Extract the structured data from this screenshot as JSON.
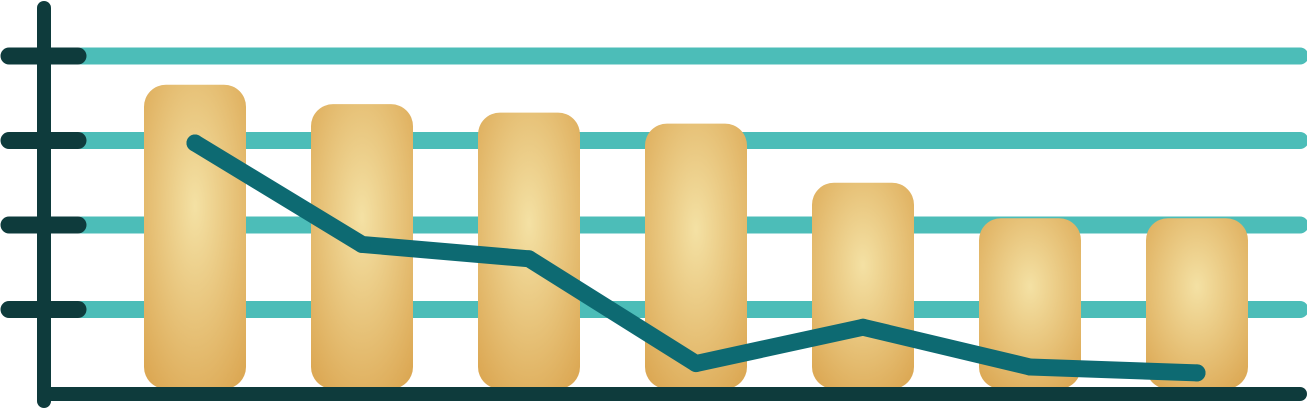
{
  "chart_data": {
    "type": "bar",
    "categories": [
      "",
      "",
      "",
      "",
      "",
      "",
      ""
    ],
    "ylim": [
      0,
      4
    ],
    "yticks": [
      1,
      2,
      3,
      4
    ],
    "grid": true,
    "series": [
      {
        "type": "bar",
        "values": [
          3.66,
          3.43,
          3.33,
          3.2,
          2.5,
          2.08,
          2.08
        ]
      },
      {
        "type": "line",
        "values": [
          2.97,
          1.77,
          1.6,
          0.36,
          0.79,
          0.32,
          0.25
        ]
      }
    ]
  },
  "colors": {
    "axis": "#0e3b3c",
    "grid": "#4cbdb8",
    "bar_dark": "#dba651",
    "bar_light": "#f4e1a4",
    "line": "#0d6a72",
    "background": "#ffffff"
  }
}
